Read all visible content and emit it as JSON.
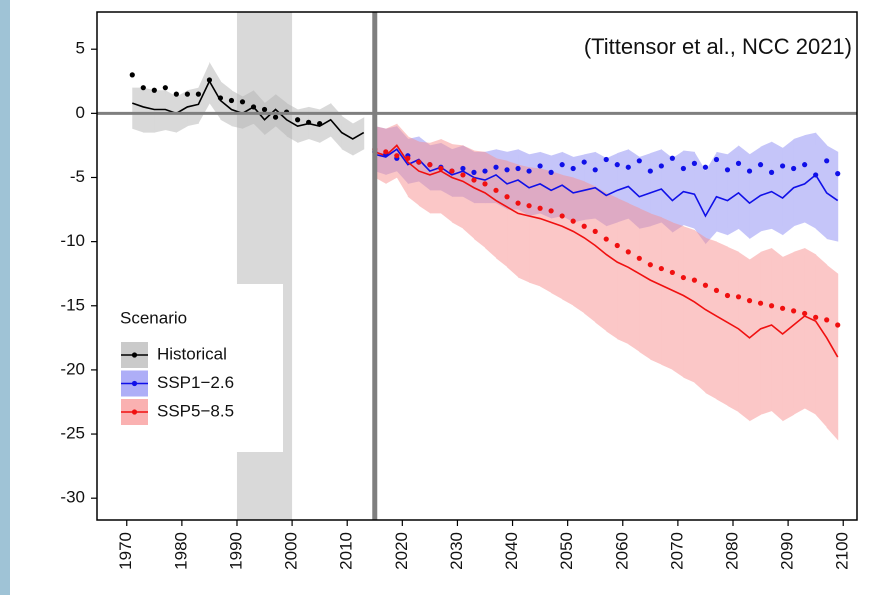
{
  "chart_data": {
    "type": "line",
    "annotation": "(Tittensor et al., NCC 2021)",
    "legend_title": "Scenario",
    "xlim": [
      1964.6,
      2102.5
    ],
    "ylim": [
      -31.7,
      7.9
    ],
    "xticks": [
      1970,
      1980,
      1990,
      2000,
      2010,
      2020,
      2030,
      2040,
      2050,
      2060,
      2070,
      2080,
      2090,
      2100
    ],
    "yticks": [
      5,
      0,
      -5,
      -10,
      -15,
      -20,
      -25,
      -30
    ],
    "highlight_span": [
      1990,
      2000
    ],
    "reference_x": 2015,
    "reference_y": 0,
    "series": [
      {
        "name": "Historical",
        "color": "#000000",
        "band_color": "#b4b4b4",
        "x": [
          1971,
          1973,
          1975,
          1977,
          1979,
          1981,
          1983,
          1985,
          1987,
          1989,
          1991,
          1993,
          1995,
          1997,
          1999,
          2001,
          2003,
          2005,
          2007,
          2009,
          2011,
          2013
        ],
        "values": [
          3,
          2,
          1.8,
          2,
          1.5,
          1.5,
          1.5,
          2.6,
          1.2,
          1,
          0.9,
          0.5,
          0.3,
          -0.3,
          0.1,
          -0.5,
          -0.7,
          -0.8,
          null,
          null,
          null,
          null
        ],
        "mean": [
          0.8,
          0.5,
          0.3,
          0.3,
          0,
          0.5,
          0.7,
          2.5,
          1,
          0.3,
          0,
          0.5,
          -0.5,
          0.3,
          -0.5,
          -1,
          -0.8,
          -1,
          -0.5,
          -1.5,
          -2,
          -1.5
        ],
        "lower": [
          -1.2,
          -1.5,
          -1.5,
          -1.3,
          -1.5,
          -1,
          -0.8,
          0.8,
          -0.5,
          -1,
          -1.2,
          -0.8,
          -1.7,
          -1,
          -1.8,
          -2.3,
          -2,
          -2.3,
          -1.8,
          -2.8,
          -3.3,
          -2.8
        ],
        "upper": [
          2,
          2,
          1.8,
          1.8,
          1.3,
          1.8,
          2,
          4,
          2.5,
          1.8,
          1.3,
          1.8,
          0.8,
          1.5,
          0.8,
          0.3,
          0.5,
          0.3,
          0.8,
          -0.2,
          -0.8,
          -0.3
        ]
      },
      {
        "name": "SSP1−2.6",
        "color": "#1010e8",
        "band_color": "#8c8cf4",
        "x": [
          2015,
          2017,
          2019,
          2021,
          2023,
          2025,
          2027,
          2029,
          2031,
          2033,
          2035,
          2037,
          2039,
          2041,
          2043,
          2045,
          2047,
          2049,
          2051,
          2053,
          2055,
          2057,
          2059,
          2061,
          2063,
          2065,
          2067,
          2069,
          2071,
          2073,
          2075,
          2077,
          2079,
          2081,
          2083,
          2085,
          2087,
          2089,
          2091,
          2093,
          2095,
          2097,
          2099
        ],
        "values": [
          -3,
          -3.2,
          -3.5,
          -3.3,
          -3.8,
          -4,
          -4.2,
          -4.5,
          -4.3,
          -4.6,
          -4.5,
          -4.2,
          -4.4,
          -4.3,
          -4.5,
          -4.1,
          -4.6,
          -4,
          -4.3,
          -3.8,
          -4.4,
          -3.6,
          -4,
          -4.2,
          -3.7,
          -4.5,
          -4.1,
          -3.5,
          -4.3,
          -3.9,
          -4.2,
          -3.6,
          -4.4,
          -3.9,
          -4.5,
          -4,
          -4.6,
          -4.1,
          -4.3,
          -4.0,
          -4.8,
          -3.7,
          -4.7
        ],
        "mean": [
          -3.2,
          -3.4,
          -2.8,
          -4,
          -3.6,
          -4.5,
          -4.2,
          -4.8,
          -4.5,
          -5,
          -5.2,
          -4.8,
          -5.5,
          -5.2,
          -5.8,
          -5.5,
          -6,
          -5.6,
          -6.2,
          -6,
          -5.8,
          -6.4,
          -6,
          -5.7,
          -6.5,
          -6.2,
          -5.9,
          -6.8,
          -6.1,
          -6.3,
          -8,
          -6.5,
          -6.8,
          -6.2,
          -7,
          -6.4,
          -6.1,
          -6.6,
          -5.8,
          -5.5,
          -4.8,
          -6.2,
          -6.8
        ],
        "lower": [
          -4.5,
          -4.8,
          -4.5,
          -5.5,
          -5.3,
          -6,
          -6,
          -6.5,
          -6.5,
          -7,
          -7,
          -7,
          -7.5,
          -7.5,
          -8,
          -7.8,
          -8.2,
          -8,
          -8.5,
          -8.3,
          -8.2,
          -8.8,
          -8.5,
          -8.2,
          -9,
          -8.8,
          -8.5,
          -9.3,
          -8.7,
          -9,
          -10.2,
          -9.2,
          -9.5,
          -9,
          -9.8,
          -9.2,
          -9,
          -9.5,
          -8.8,
          -8.5,
          -9,
          -9.8,
          -10
        ],
        "upper": [
          -1,
          -1.2,
          -1,
          -2,
          -1.8,
          -2.5,
          -2.3,
          -2.8,
          -2.5,
          -3,
          -3,
          -2.8,
          -3,
          -2.8,
          -3.2,
          -3,
          -3.3,
          -3,
          -3.4,
          -3.2,
          -3,
          -3.5,
          -3.1,
          -2.8,
          -3.4,
          -3.1,
          -2.8,
          -3.5,
          -2.9,
          -3,
          -4.5,
          -3,
          -3.2,
          -2.5,
          -3.2,
          -2.6,
          -2.2,
          -2.7,
          -2,
          -1.7,
          -1.5,
          -2.5,
          -3
        ]
      },
      {
        "name": "SSP5−8.5",
        "color": "#f01010",
        "band_color": "#f89090",
        "x": [
          2015,
          2017,
          2019,
          2021,
          2023,
          2025,
          2027,
          2029,
          2031,
          2033,
          2035,
          2037,
          2039,
          2041,
          2043,
          2045,
          2047,
          2049,
          2051,
          2053,
          2055,
          2057,
          2059,
          2061,
          2063,
          2065,
          2067,
          2069,
          2071,
          2073,
          2075,
          2077,
          2079,
          2081,
          2083,
          2085,
          2087,
          2089,
          2091,
          2093,
          2095,
          2097,
          2099
        ],
        "values": [
          -2.8,
          -3,
          -3.3,
          -3.5,
          -3.8,
          -4,
          -4.3,
          -4.5,
          -4.8,
          -5.2,
          -5.5,
          -6,
          -6.5,
          -7,
          -7.2,
          -7.4,
          -7.6,
          -8,
          -8.4,
          -8.8,
          -9.2,
          -9.8,
          -10.3,
          -10.8,
          -11.3,
          -11.8,
          -12.1,
          -12.4,
          -12.8,
          -13,
          -13.4,
          -13.8,
          -14.2,
          -14.3,
          -14.6,
          -14.8,
          -15,
          -15.2,
          -15.4,
          -15.6,
          -15.9,
          -16.1,
          -16.5
        ],
        "mean": [
          -3,
          -3.3,
          -2.5,
          -3.8,
          -4.5,
          -4.8,
          -4.5,
          -5,
          -5.3,
          -5.8,
          -6.2,
          -6.8,
          -7.3,
          -7.8,
          -8,
          -8.2,
          -8.5,
          -8.8,
          -9.2,
          -9.7,
          -10.3,
          -11,
          -11.6,
          -12,
          -12.5,
          -13,
          -13.4,
          -13.8,
          -14.2,
          -14.7,
          -15.3,
          -15.8,
          -16.3,
          -16.8,
          -17.5,
          -16.8,
          -16.5,
          -17.2,
          -16.5,
          -15.8,
          -16.2,
          -17.5,
          -19
        ],
        "lower": [
          -5,
          -5.5,
          -5,
          -6.5,
          -7.2,
          -7.8,
          -7.8,
          -8.5,
          -9,
          -9.8,
          -10.5,
          -11.3,
          -12,
          -12.8,
          -13.2,
          -13.5,
          -14,
          -14.5,
          -15,
          -15.6,
          -16.3,
          -17,
          -17.6,
          -18,
          -18.6,
          -19.2,
          -19.6,
          -20,
          -20.6,
          -21,
          -21.8,
          -22.3,
          -22.8,
          -23.3,
          -24,
          -23.5,
          -23.2,
          -24,
          -23.5,
          -23,
          -23.5,
          -24.5,
          -25.5
        ],
        "upper": [
          -1,
          -1.2,
          -0.8,
          -1.8,
          -2.2,
          -2.3,
          -2,
          -2.4,
          -2.5,
          -2.9,
          -3,
          -3.5,
          -3.7,
          -4,
          -4.2,
          -4.3,
          -4.5,
          -4.8,
          -5,
          -5.3,
          -5.7,
          -6.2,
          -6.6,
          -7,
          -7.4,
          -7.8,
          -8.1,
          -8.5,
          -8.8,
          -9.1,
          -9.7,
          -10,
          -10.4,
          -10.8,
          -11.4,
          -10.8,
          -10.5,
          -11.2,
          -10.8,
          -10.5,
          -11,
          -11.8,
          -12.5
        ]
      }
    ]
  }
}
